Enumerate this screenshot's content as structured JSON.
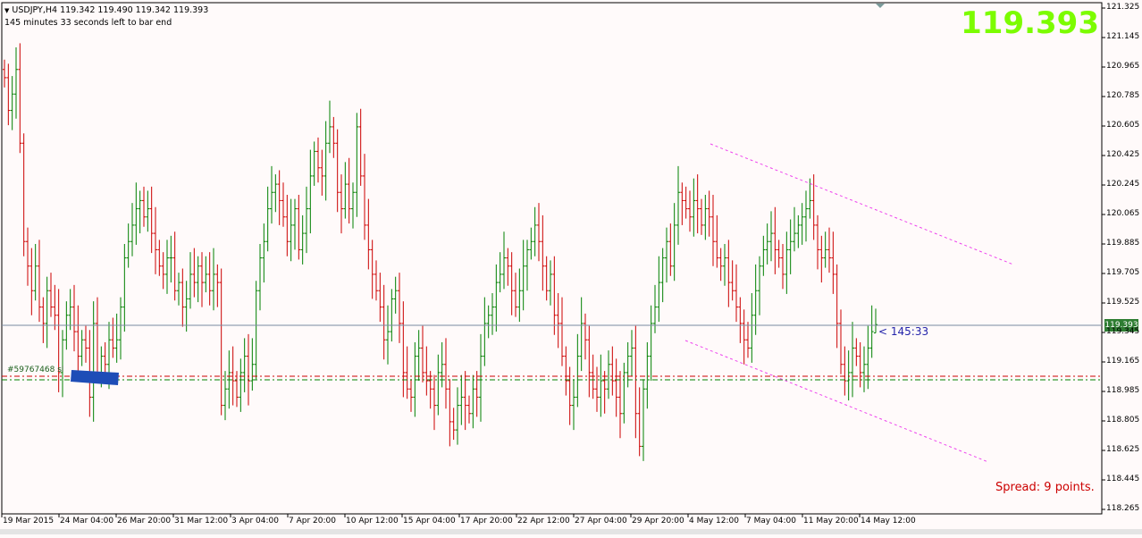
{
  "header": {
    "symbol_line": "USDJPY,H4  119.342 119.490 119.342 119.393",
    "countdown_line": "145 minutes 33 seconds left to bar end"
  },
  "big_price": "119.393",
  "spread_text": "Spread: 9 points.",
  "timer_text": "< 145:33",
  "order_label": "#59767468 sl",
  "current_price_label": "119.393",
  "colors": {
    "background": "#fffafa",
    "bull": "#008000",
    "bear": "#cc0000",
    "big_price": "#7cfc00",
    "channel": "#ee44ee",
    "order_box": "#1e4db7",
    "price_line": "#7a8aa0"
  },
  "chart_data": {
    "type": "ohlc",
    "symbol": "USDJPY",
    "timeframe": "H4",
    "ylim": [
      118.265,
      121.325
    ],
    "y_ticks": [
      "121.325",
      "121.145",
      "120.965",
      "120.785",
      "120.605",
      "120.425",
      "120.245",
      "120.065",
      "119.885",
      "119.705",
      "119.525",
      "119.345",
      "119.165",
      "118.985",
      "118.805",
      "118.625",
      "118.445",
      "118.265"
    ],
    "x_ticks": [
      "19 Mar 2015",
      "24 Mar 04:00",
      "26 Mar 20:00",
      "31 Mar 12:00",
      "3 Apr 04:00",
      "7 Apr 20:00",
      "10 Apr 12:00",
      "15 Apr 04:00",
      "17 Apr 20:00",
      "22 Apr 12:00",
      "27 Apr 04:00",
      "29 Apr 20:00",
      "4 May 12:00",
      "7 May 04:00",
      "11 May 20:00",
      "14 May 12:00"
    ],
    "last_bar": {
      "open": 119.342,
      "high": 119.49,
      "low": 119.342,
      "close": 119.393
    },
    "closes": [
      120.9,
      120.7,
      120.8,
      120.95,
      120.5,
      119.9,
      119.75,
      119.6,
      119.75,
      119.5,
      119.4,
      119.6,
      119.5,
      119.45,
      119.1,
      119.3,
      119.45,
      119.5,
      119.35,
      119.2,
      119.3,
      119.25,
      118.95,
      119.4,
      119.1,
      119.2,
      119.15,
      119.3,
      119.25,
      119.3,
      119.5,
      119.8,
      119.9,
      120.0,
      120.1,
      120.15,
      120.05,
      120.1,
      119.95,
      119.85,
      119.75,
      119.7,
      119.8,
      119.8,
      119.6,
      119.65,
      119.5,
      119.55,
      119.7,
      119.65,
      119.75,
      119.65,
      119.7,
      119.6,
      119.7,
      119.65,
      118.9,
      119.0,
      119.1,
      119.05,
      118.95,
      119.1,
      119.2,
      119.05,
      119.15,
      119.6,
      119.8,
      119.9,
      120.1,
      120.2,
      120.25,
      120.15,
      120.05,
      119.9,
      120.0,
      120.1,
      119.85,
      119.95,
      120.1,
      120.3,
      120.45,
      120.35,
      120.3,
      120.5,
      120.6,
      120.5,
      120.2,
      120.1,
      120.25,
      120.1,
      120.2,
      120.6,
      120.3,
      120.0,
      119.85,
      119.7,
      119.6,
      119.5,
      119.3,
      119.35,
      119.55,
      119.6,
      119.4,
      119.1,
      119.0,
      118.95,
      119.2,
      119.25,
      119.1,
      119.05,
      119.0,
      118.9,
      119.1,
      119.15,
      119.0,
      118.8,
      118.75,
      118.9,
      118.95,
      118.9,
      118.85,
      119.0,
      118.95,
      119.2,
      119.4,
      119.45,
      119.5,
      119.65,
      119.7,
      119.8,
      119.75,
      119.6,
      119.5,
      119.6,
      119.75,
      119.85,
      119.9,
      120.0,
      119.9,
      119.75,
      119.6,
      119.7,
      119.45,
      119.4,
      119.2,
      119.05,
      118.9,
      118.95,
      119.2,
      119.4,
      119.3,
      119.1,
      119.0,
      118.95,
      119.05,
      119.0,
      119.15,
      119.05,
      118.95,
      118.85,
      119.1,
      119.2,
      119.25,
      118.85,
      118.65,
      119.0,
      119.2,
      119.4,
      119.5,
      119.65,
      119.8,
      119.9,
      119.75,
      120.0,
      120.2,
      120.15,
      120.1,
      120.05,
      120.15,
      120.1,
      120.0,
      120.1,
      120.05,
      119.9,
      119.8,
      119.75,
      119.8,
      119.65,
      119.6,
      119.5,
      119.4,
      119.3,
      119.25,
      119.45,
      119.6,
      119.75,
      119.85,
      119.9,
      119.95,
      119.85,
      119.8,
      119.7,
      119.85,
      119.9,
      119.95,
      120.0,
      120.05,
      120.1,
      120.15,
      120.0,
      119.85,
      119.8,
      119.85,
      119.8,
      119.7,
      119.4,
      119.15,
      119.05,
      119.1,
      119.25,
      119.2,
      119.1,
      119.15,
      119.25,
      119.35,
      119.393
    ]
  }
}
